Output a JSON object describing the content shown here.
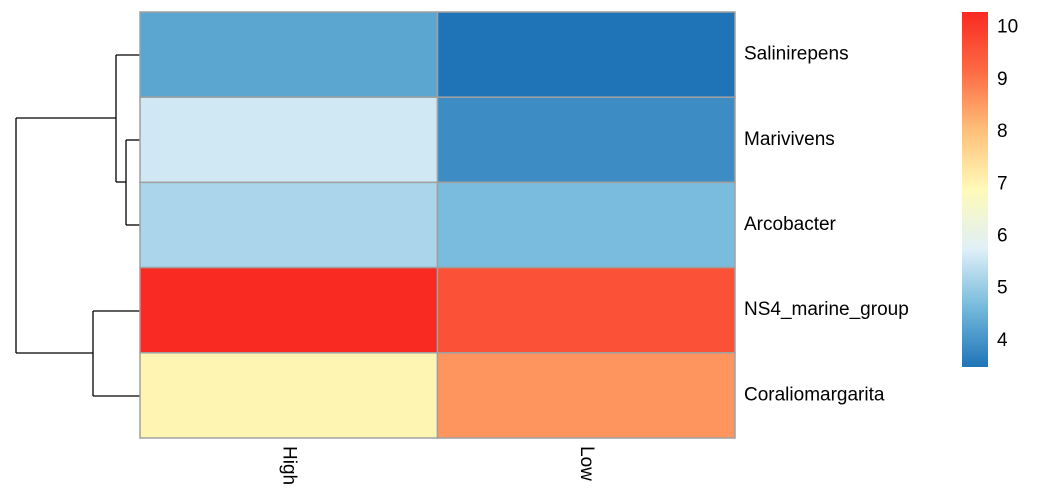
{
  "chart_data": {
    "type": "heatmap",
    "rows": [
      "Salinirepens",
      "Marivivens",
      "Arcobacter",
      "NS4_marine_group",
      "Coraliomargarita"
    ],
    "columns": [
      "High",
      "Low"
    ],
    "values": [
      [
        4.3,
        3.5
      ],
      [
        5.6,
        3.9
      ],
      [
        5.2,
        4.7
      ],
      [
        10.3,
        9.6
      ],
      [
        7.0,
        8.6
      ]
    ],
    "zlim": [
      3.5,
      10.3
    ],
    "zticks": [
      4,
      5,
      6,
      7,
      8,
      9,
      10
    ],
    "colorscale": [
      "#1f74b7",
      "#74b9dc",
      "#e0f0f7",
      "#fffab8",
      "#fec07a",
      "#fd6a44",
      "#f92a22"
    ],
    "cell_border": "#a0a0a0"
  }
}
